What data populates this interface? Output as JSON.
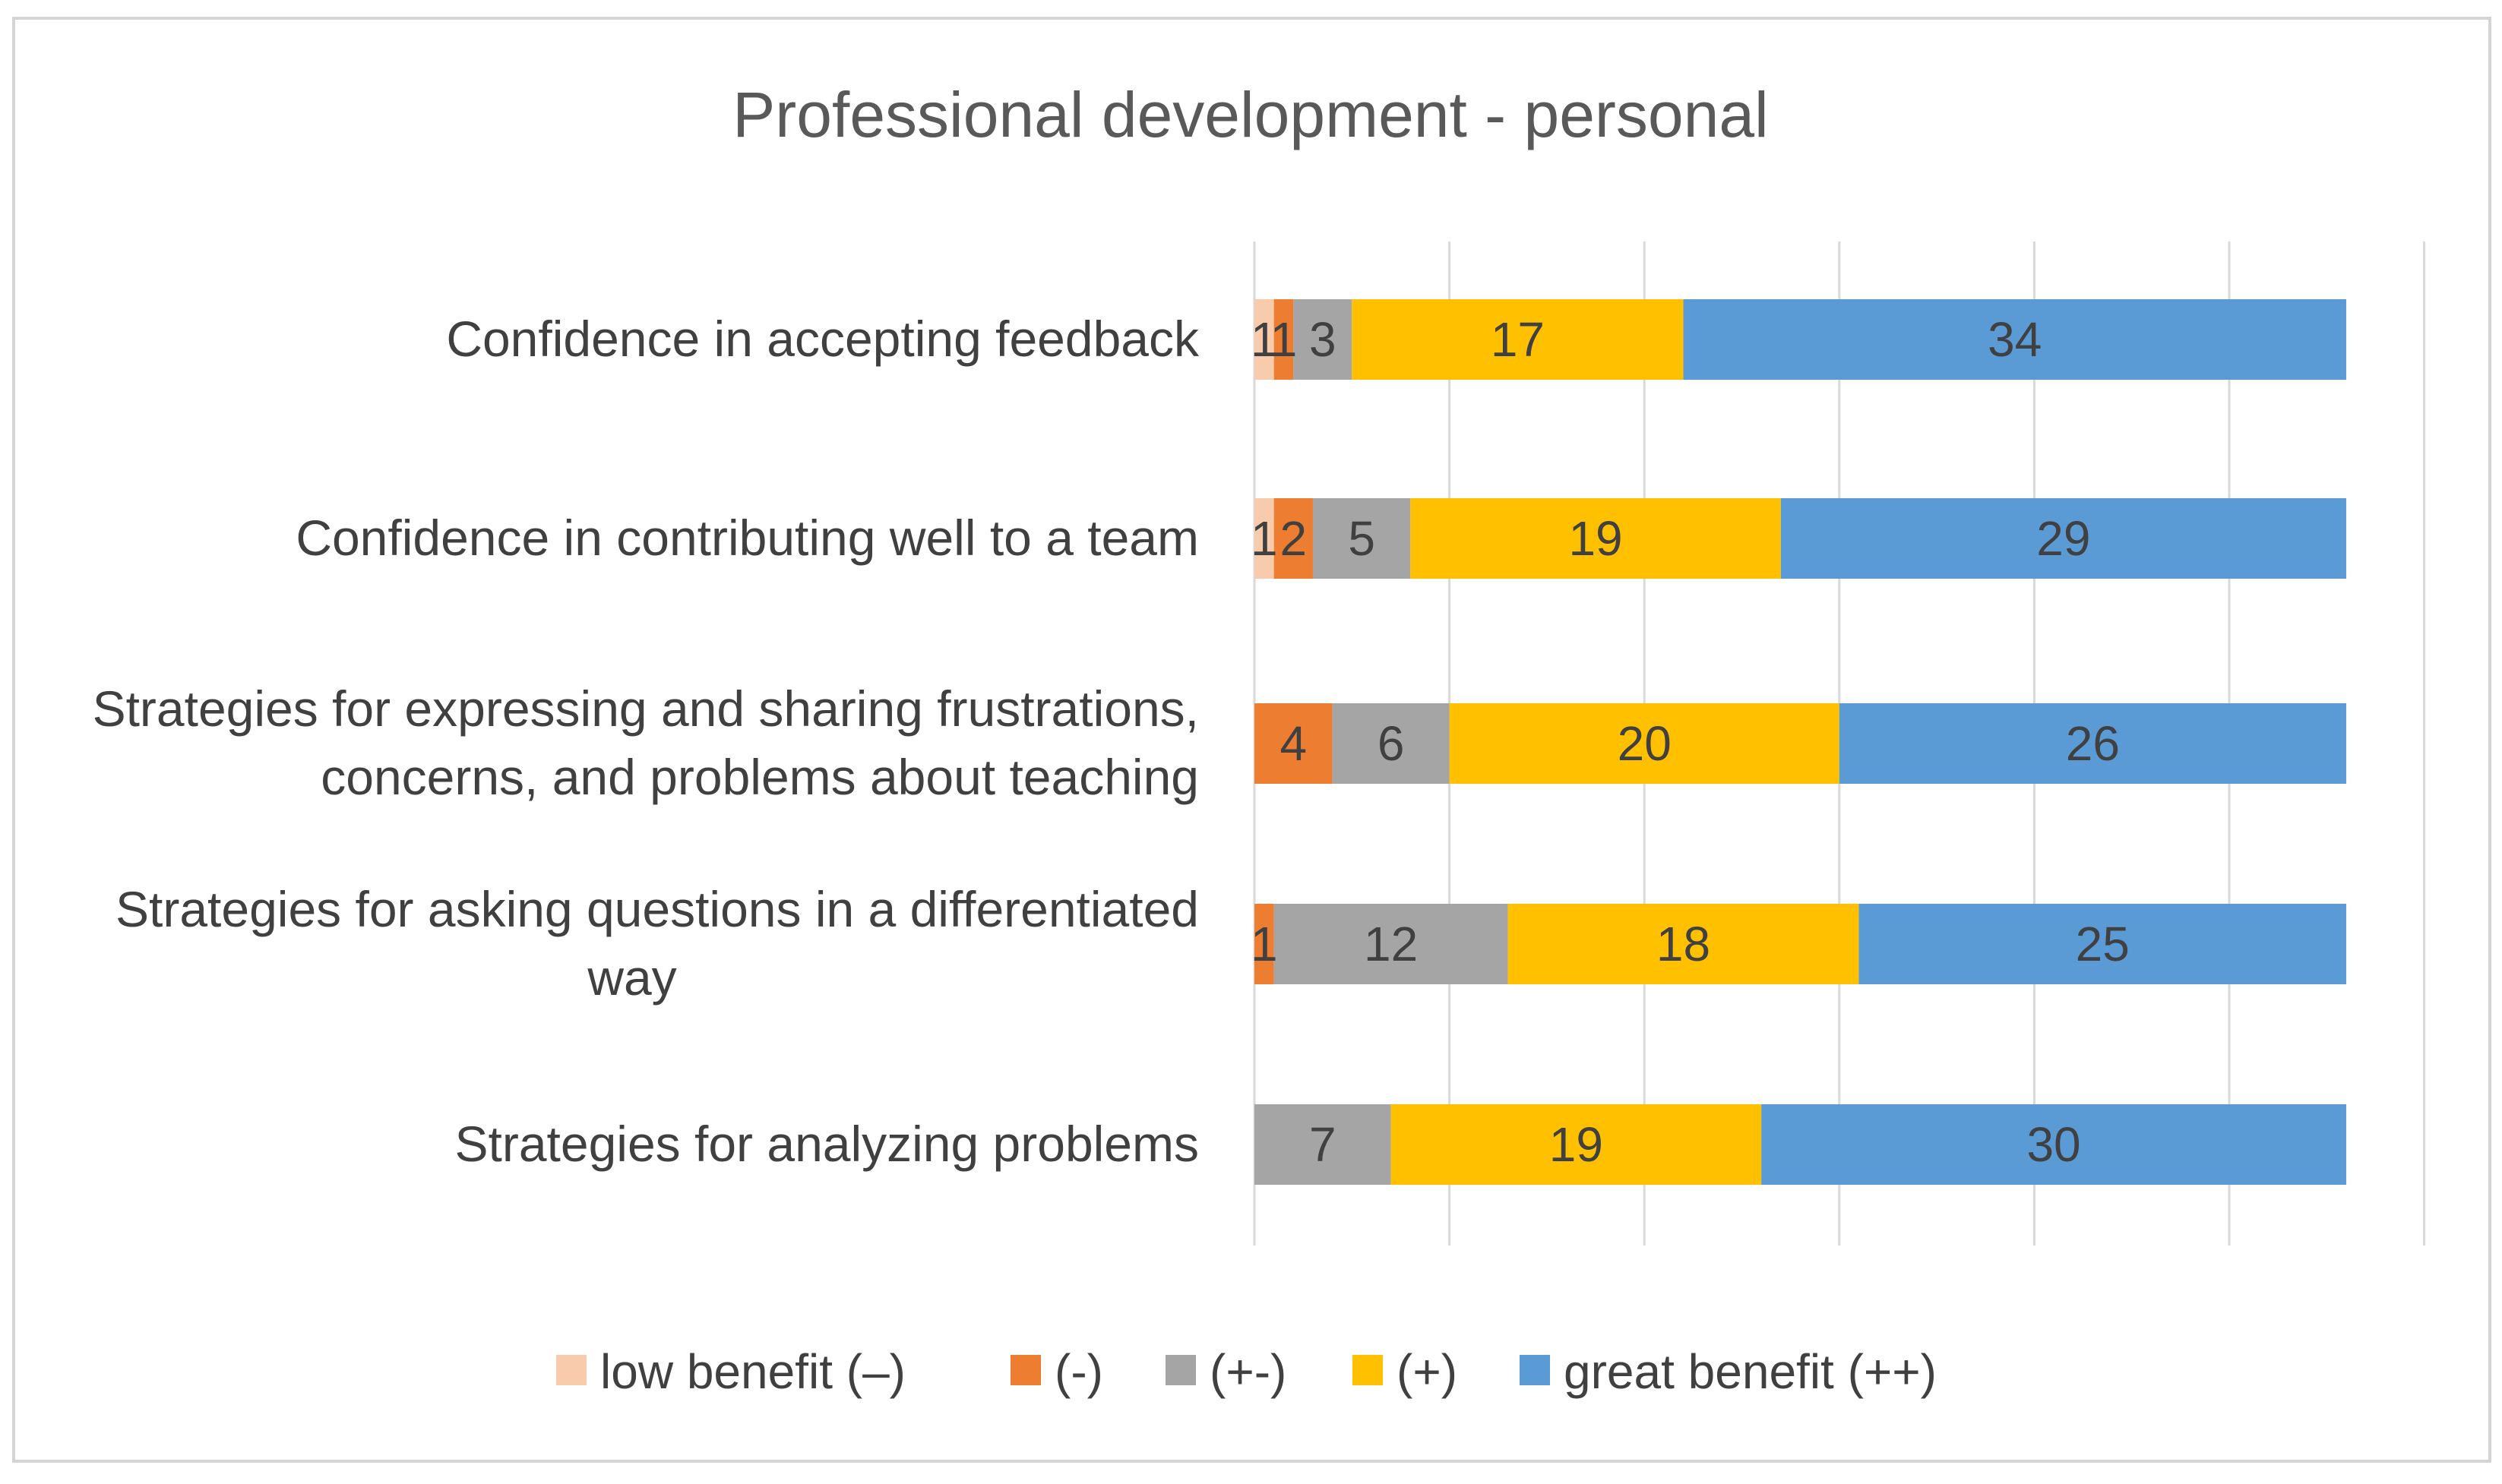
{
  "chart_data": {
    "type": "bar",
    "orientation": "horizontal",
    "stacked": true,
    "title": "Professional development - personal",
    "xlabel": "",
    "ylabel": "",
    "xlim": [
      0,
      60
    ],
    "grid": true,
    "legend_position": "bottom",
    "categories": [
      [
        "Confidence in accepting feedback"
      ],
      [
        "Confidence in contributing well to a team"
      ],
      [
        "Strategies for expressing and sharing frustrations,",
        "concerns, and problems about teaching"
      ],
      [
        "Strategies for asking questions in a differentiated",
        "way"
      ],
      [
        "Strategies for analyzing problems"
      ]
    ],
    "series": [
      {
        "name": "low benefit (–)",
        "color": "#f8cbad",
        "values": [
          1,
          1,
          0,
          0,
          0
        ]
      },
      {
        "name": "(-)",
        "color": "#ed7d31",
        "values": [
          1,
          2,
          4,
          1,
          0
        ]
      },
      {
        "name": "(+-)",
        "color": "#a5a5a5",
        "values": [
          3,
          5,
          6,
          12,
          7
        ]
      },
      {
        "name": "(+)",
        "color": "#ffc000",
        "values": [
          17,
          19,
          20,
          18,
          19
        ]
      },
      {
        "name": "great benefit (++)",
        "color": "#5b9bd5",
        "values": [
          34,
          29,
          26,
          25,
          30
        ]
      }
    ]
  }
}
